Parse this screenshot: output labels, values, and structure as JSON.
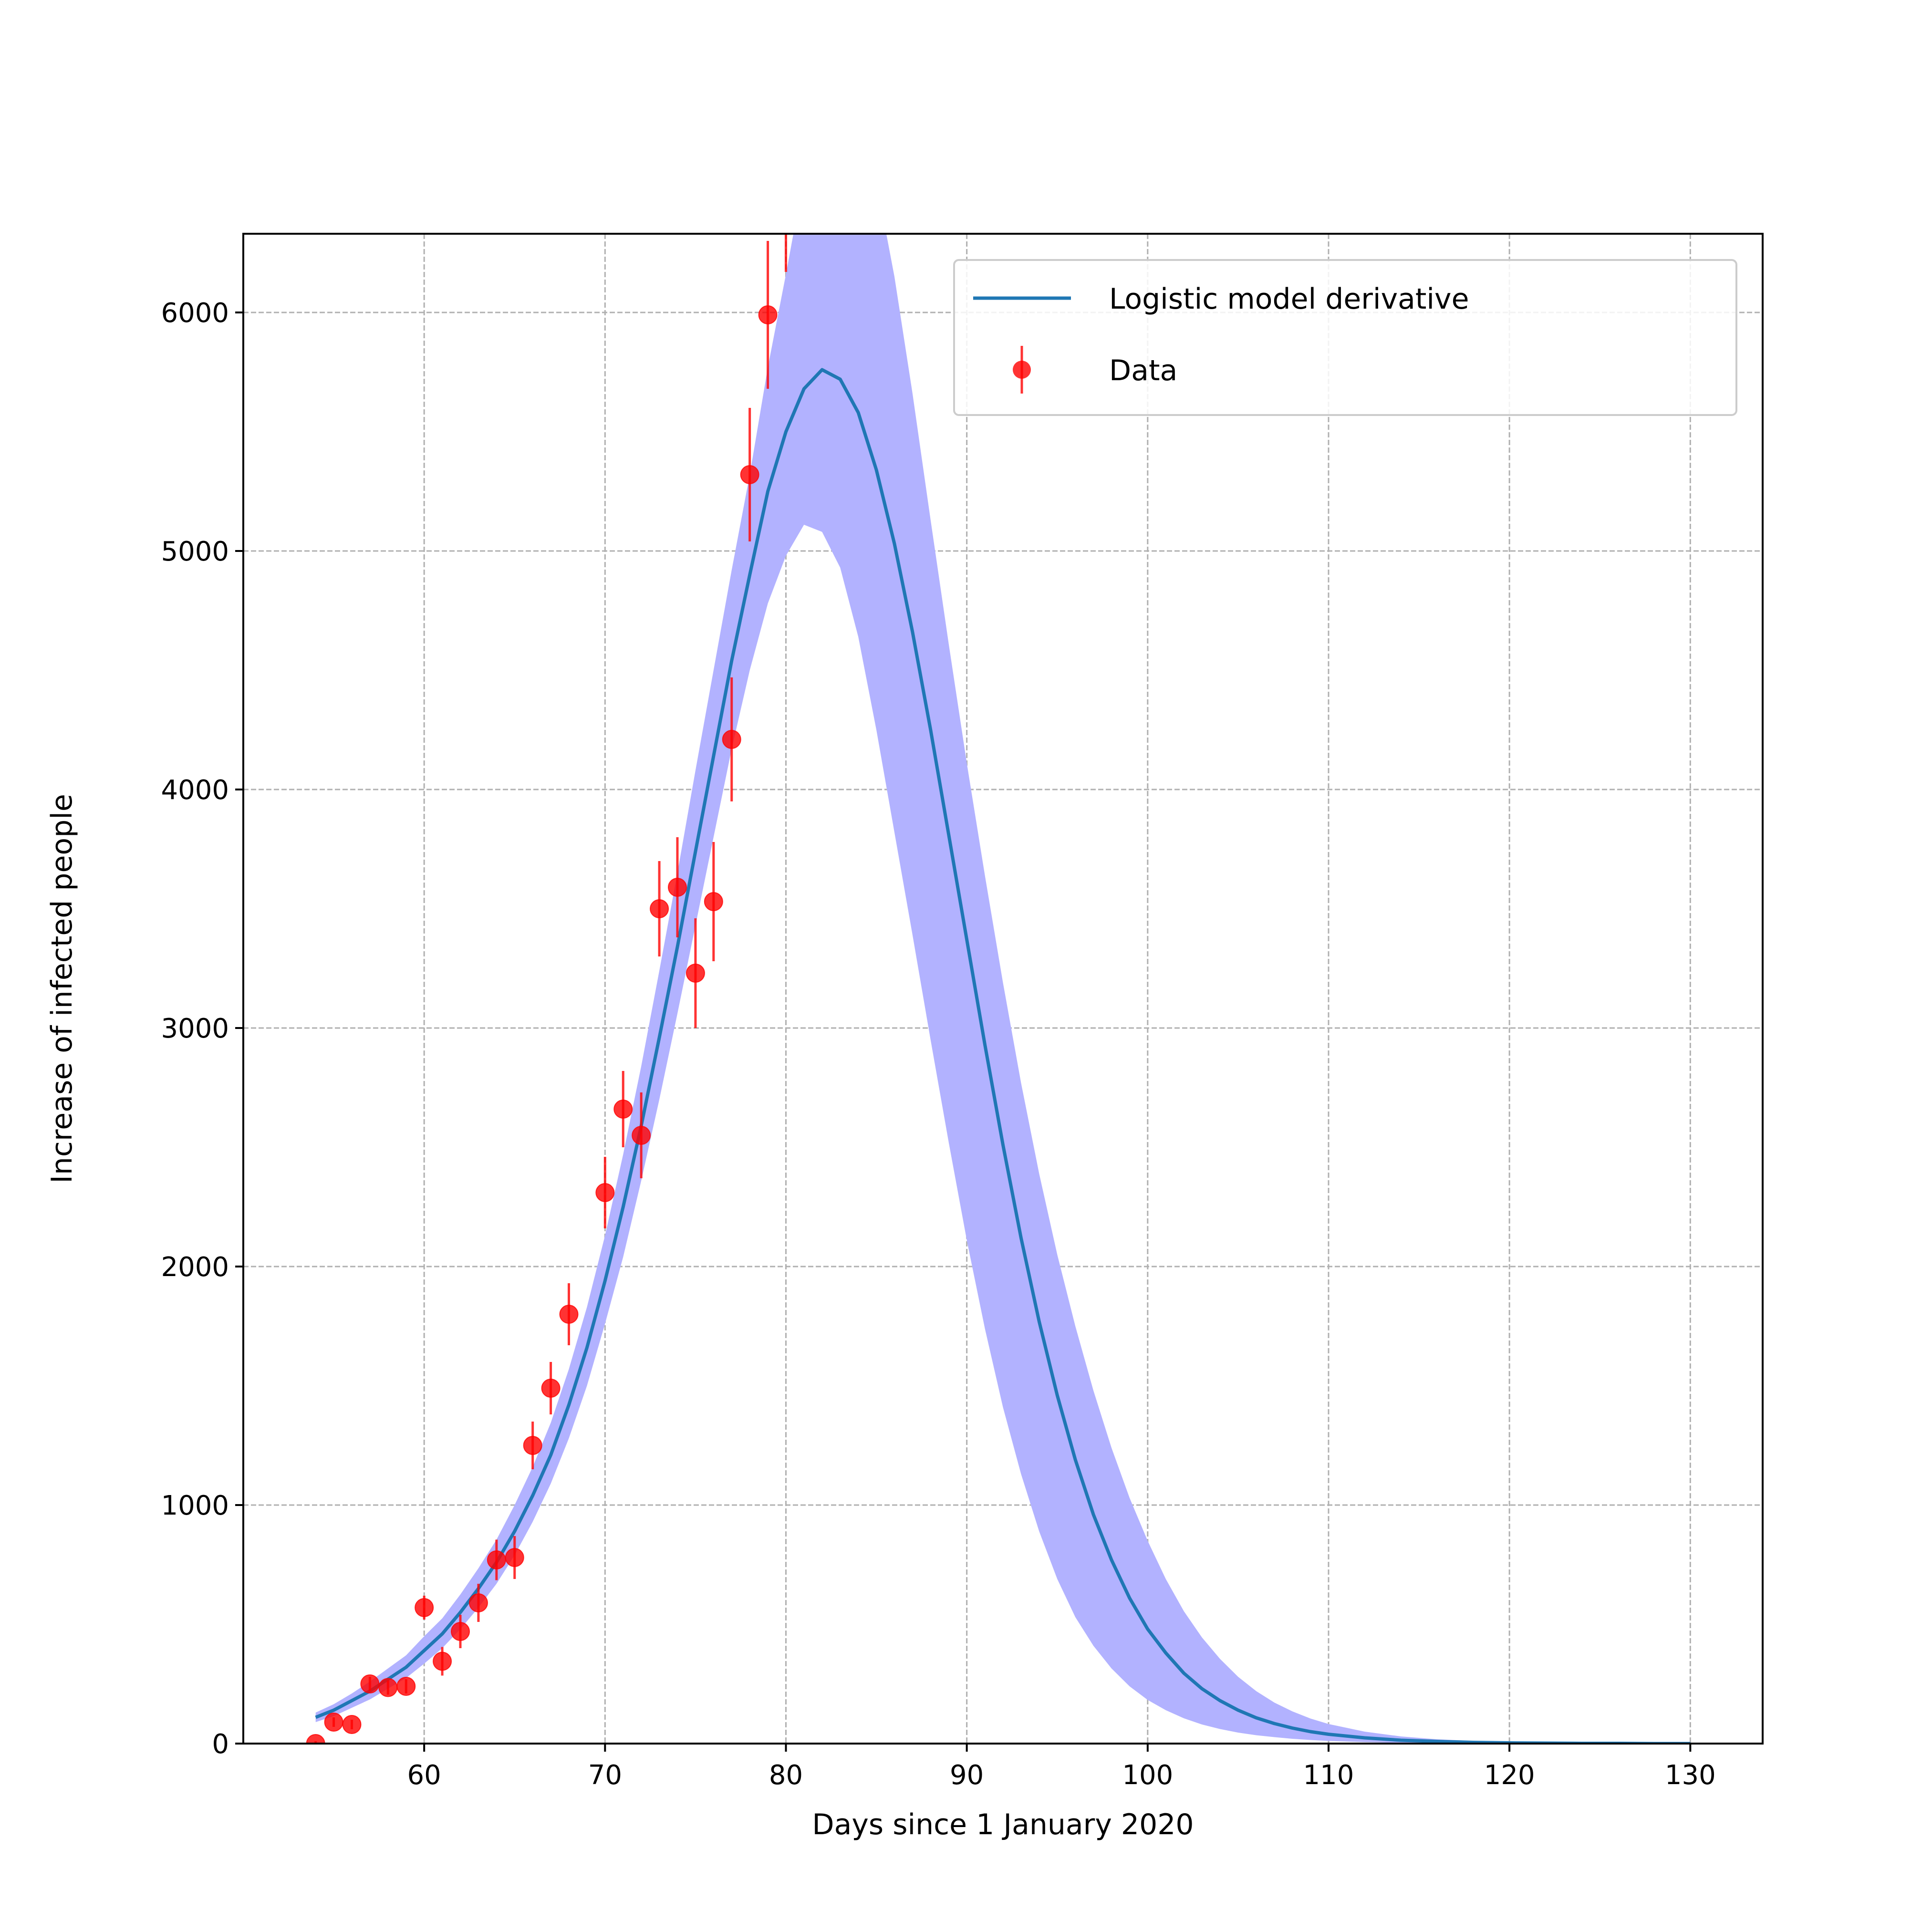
{
  "chart_data": {
    "type": "line",
    "title": "",
    "xlabel": "Days since 1 January 2020",
    "ylabel": "Increase of infected people",
    "xlim": [
      50,
      134
    ],
    "ylim": [
      0,
      6330
    ],
    "x_ticks": [
      60,
      70,
      80,
      90,
      100,
      110,
      120,
      130
    ],
    "y_ticks": [
      0,
      1000,
      2000,
      3000,
      4000,
      5000,
      6000
    ],
    "x_tick_labels": [
      "60",
      "70",
      "80",
      "90",
      "100",
      "110",
      "120",
      "130"
    ],
    "y_tick_labels": [
      "0",
      "1000",
      "2000",
      "3000",
      "4000",
      "5000",
      "6000"
    ],
    "grid": true,
    "legend": {
      "position": "upper right",
      "entries": [
        "Logistic model derivative",
        "Data"
      ]
    },
    "colors": {
      "model": "#1f77b4",
      "band": "#b2b2ff",
      "data": "#ff0000"
    },
    "series": [
      {
        "name": "Logistic model derivative",
        "kind": "line",
        "x": [
          54,
          55,
          56,
          57,
          58,
          59,
          60,
          61,
          62,
          63,
          64,
          65,
          66,
          67,
          68,
          69,
          70,
          71,
          72,
          73,
          74,
          75,
          76,
          77,
          78,
          79,
          80,
          81,
          82,
          83,
          84,
          85,
          86,
          87,
          88,
          89,
          90,
          91,
          92,
          93,
          94,
          95,
          96,
          97,
          98,
          99,
          100,
          101,
          102,
          103,
          104,
          105,
          106,
          107,
          108,
          109,
          110,
          112,
          114,
          116,
          118,
          120,
          122,
          124,
          126,
          128,
          130
        ],
        "y": [
          110,
          140,
          180,
          220,
          270,
          320,
          390,
          460,
          550,
          650,
          760,
          890,
          1040,
          1210,
          1420,
          1660,
          1940,
          2250,
          2590,
          2960,
          3340,
          3740,
          4140,
          4540,
          4900,
          5250,
          5500,
          5680,
          5760,
          5720,
          5580,
          5340,
          5030,
          4660,
          4250,
          3810,
          3370,
          2930,
          2510,
          2120,
          1770,
          1460,
          1190,
          960,
          770,
          610,
          480,
          380,
          295,
          230,
          180,
          140,
          108,
          84,
          65,
          50,
          39,
          24,
          14,
          9,
          5,
          3,
          2,
          1,
          1,
          0,
          0
        ],
        "band_lower": [
          90,
          115,
          150,
          185,
          230,
          275,
          335,
          400,
          480,
          570,
          670,
          790,
          930,
          1090,
          1280,
          1500,
          1760,
          2040,
          2360,
          2700,
          3060,
          3430,
          3800,
          4170,
          4500,
          4780,
          4980,
          5110,
          5080,
          4930,
          4640,
          4250,
          3820,
          3390,
          2950,
          2520,
          2110,
          1740,
          1410,
          1130,
          890,
          690,
          530,
          410,
          315,
          240,
          183,
          140,
          106,
          80,
          61,
          46,
          35,
          27,
          20,
          15,
          11,
          6,
          3,
          2,
          1,
          1,
          0,
          0,
          0,
          0,
          0
        ],
        "band_upper": [
          130,
          165,
          210,
          260,
          315,
          370,
          450,
          525,
          625,
          735,
          855,
          1000,
          1160,
          1345,
          1570,
          1830,
          2130,
          2470,
          2840,
          3240,
          3650,
          4080,
          4500,
          4920,
          5320,
          5770,
          6160,
          6570,
          6830,
          6950,
          6850,
          6550,
          6150,
          5660,
          5130,
          4610,
          4110,
          3640,
          3190,
          2770,
          2390,
          2050,
          1750,
          1480,
          1240,
          1030,
          850,
          690,
          555,
          445,
          355,
          280,
          220,
          172,
          135,
          105,
          82,
          50,
          30,
          18,
          11,
          6,
          4,
          2,
          1,
          1,
          0
        ]
      },
      {
        "name": "Data",
        "kind": "errorbar",
        "x": [
          54,
          55,
          56,
          57,
          58,
          59,
          60,
          61,
          62,
          63,
          64,
          65,
          66,
          67,
          68,
          70,
          71,
          72,
          73,
          74,
          75,
          76,
          77,
          78,
          79,
          80
        ],
        "y": [
          0,
          90,
          80,
          250,
          235,
          240,
          570,
          345,
          470,
          590,
          770,
          780,
          1250,
          1490,
          1800,
          2310,
          2660,
          2550,
          3500,
          3590,
          3230,
          3530,
          4210,
          5320,
          5990,
          6490
        ],
        "yerr": [
          10,
          20,
          20,
          30,
          30,
          30,
          50,
          60,
          70,
          80,
          85,
          90,
          100,
          110,
          130,
          150,
          160,
          180,
          200,
          210,
          230,
          250,
          260,
          280,
          310,
          320
        ]
      }
    ]
  }
}
